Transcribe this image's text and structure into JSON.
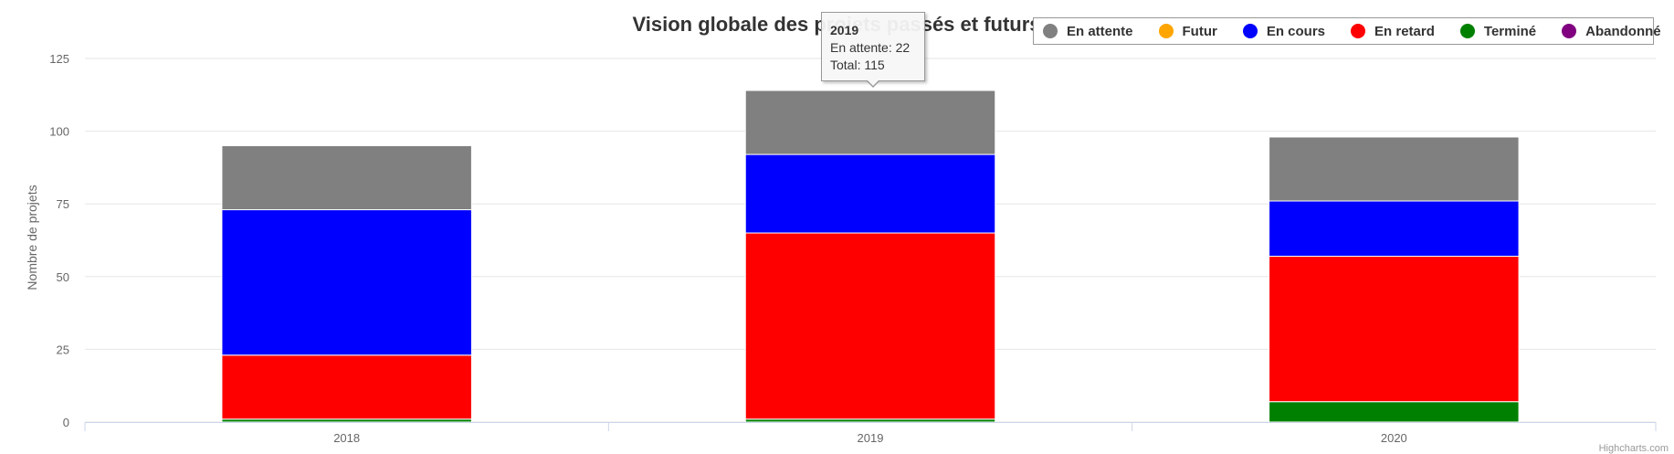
{
  "chart_data": {
    "type": "bar",
    "stacked": true,
    "title": "Vision globale des projets passés et futurs",
    "ylabel": "Nombre de projets",
    "xlabel": "",
    "ylim": [
      0,
      125
    ],
    "yticks": [
      0,
      25,
      50,
      75,
      100,
      125
    ],
    "categories": [
      "2018",
      "2019",
      "2020"
    ],
    "series": [
      {
        "name": "En attente",
        "color": "#808080",
        "values": [
          22,
          22,
          22
        ]
      },
      {
        "name": "Futur",
        "color": "#FFA500",
        "values": [
          0,
          0,
          0
        ]
      },
      {
        "name": "En cours",
        "color": "#0000FF",
        "values": [
          50,
          27,
          19
        ]
      },
      {
        "name": "En retard",
        "color": "#FF0000",
        "values": [
          22,
          64,
          50
        ]
      },
      {
        "name": "Terminé",
        "color": "#008000",
        "values": [
          1,
          1,
          7
        ]
      },
      {
        "name": "Abandonné",
        "color": "#800080",
        "values": [
          0,
          0,
          0
        ]
      }
    ],
    "grid": true,
    "legend_position": "top-right"
  },
  "tooltip": {
    "title": "2019",
    "line1": "En attente: 22",
    "line2": "Total: 115"
  },
  "credits": "Highcharts.com"
}
